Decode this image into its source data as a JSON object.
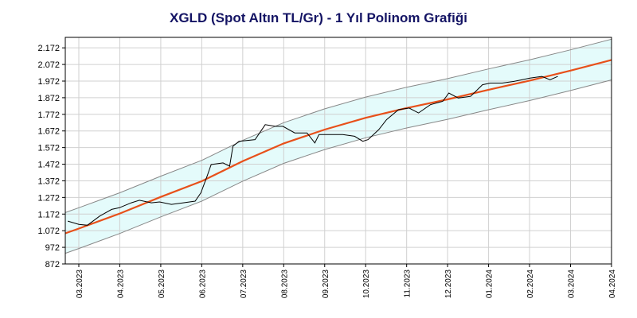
{
  "chart_data": {
    "type": "line",
    "title": "XGLD (Spot Altın TL/Gr) - 1 Yıl Polinom Grafiği",
    "xlim": [
      -0.33,
      13
    ],
    "xticks": [
      {
        "value": 0,
        "label": "03.2023"
      },
      {
        "value": 1,
        "label": "04.2023"
      },
      {
        "value": 2,
        "label": "05.2023"
      },
      {
        "value": 3,
        "label": "06.2023"
      },
      {
        "value": 4,
        "label": "07.2023"
      },
      {
        "value": 5,
        "label": "08.2023"
      },
      {
        "value": 6,
        "label": "09.2023"
      },
      {
        "value": 7,
        "label": "10.2023"
      },
      {
        "value": 8,
        "label": "11.2023"
      },
      {
        "value": 9,
        "label": "12.2023"
      },
      {
        "value": 10,
        "label": "01.2024"
      },
      {
        "value": 11,
        "label": "02.2024"
      },
      {
        "value": 12,
        "label": "03.2024"
      },
      {
        "value": 13,
        "label": "04.2024"
      }
    ],
    "ylim": [
      872,
      2235
    ],
    "yticks": [
      {
        "value": 872,
        "label": "872"
      },
      {
        "value": 972,
        "label": "972"
      },
      {
        "value": 1072,
        "label": "1.072"
      },
      {
        "value": 1172,
        "label": "1.172"
      },
      {
        "value": 1272,
        "label": "1.272"
      },
      {
        "value": 1372,
        "label": "1.372"
      },
      {
        "value": 1472,
        "label": "1.472"
      },
      {
        "value": 1572,
        "label": "1.572"
      },
      {
        "value": 1672,
        "label": "1.672"
      },
      {
        "value": 1772,
        "label": "1.772"
      },
      {
        "value": 1872,
        "label": "1.872"
      },
      {
        "value": 1972,
        "label": "1.972"
      },
      {
        "value": 2072,
        "label": "2.072"
      },
      {
        "value": 2172,
        "label": "2.172"
      }
    ],
    "grid": true,
    "band_color": "#e4fbfb",
    "series": [
      {
        "color": "#000000",
        "x": [
          -0.27,
          0,
          0.21,
          0.51,
          0.8,
          0.99,
          1.28,
          1.48,
          1.77,
          1.97,
          2.26,
          2.55,
          2.84,
          2.98,
          3.13,
          3.23,
          3.52,
          3.68,
          3.76,
          3.91,
          4.3,
          4.55,
          4.79,
          4.98,
          5.27,
          5.57,
          5.76,
          5.86,
          6.05,
          6.44,
          6.73,
          6.93,
          7.06,
          7.32,
          7.51,
          7.8,
          8.06,
          8.29,
          8.58,
          8.88,
          9.03,
          9.26,
          9.56,
          9.85,
          10.04,
          10.33,
          10.62,
          11.01,
          11.3,
          11.5,
          11.69
        ],
        "values": [
          1130,
          1110,
          1105,
          1160,
          1200,
          1210,
          1240,
          1255,
          1240,
          1245,
          1230,
          1240,
          1250,
          1300,
          1400,
          1470,
          1480,
          1460,
          1580,
          1610,
          1620,
          1710,
          1700,
          1700,
          1660,
          1660,
          1600,
          1650,
          1650,
          1650,
          1640,
          1610,
          1620,
          1680,
          1740,
          1800,
          1810,
          1780,
          1830,
          1850,
          1900,
          1870,
          1880,
          1950,
          1960,
          1960,
          1970,
          1990,
          2000,
          1980,
          2000
        ]
      },
      {
        "color": "#e8501a",
        "x": [
          -0.33,
          0,
          1,
          2,
          3,
          4,
          5,
          6,
          7,
          8,
          9,
          10,
          11,
          12,
          13
        ],
        "values": [
          1056,
          1085,
          1175,
          1275,
          1370,
          1490,
          1597,
          1680,
          1751,
          1810,
          1862,
          1920,
          1975,
          2035,
          2099
        ]
      },
      {
        "color": "#888888",
        "x": [
          -0.33,
          0,
          1,
          2,
          3,
          4,
          5,
          6,
          7,
          8,
          9,
          10,
          11,
          12,
          13
        ],
        "values": [
          1181,
          1210,
          1300,
          1400,
          1495,
          1615,
          1722,
          1805,
          1876,
          1935,
          1987,
          2045,
          2100,
          2160,
          2224
        ]
      },
      {
        "color": "#888888",
        "x": [
          -0.33,
          0,
          1,
          2,
          3,
          4,
          5,
          6,
          7,
          8,
          9,
          10,
          11,
          12,
          13
        ],
        "values": [
          936,
          965,
          1055,
          1155,
          1250,
          1370,
          1477,
          1560,
          1631,
          1690,
          1742,
          1800,
          1855,
          1915,
          1979
        ]
      }
    ]
  }
}
